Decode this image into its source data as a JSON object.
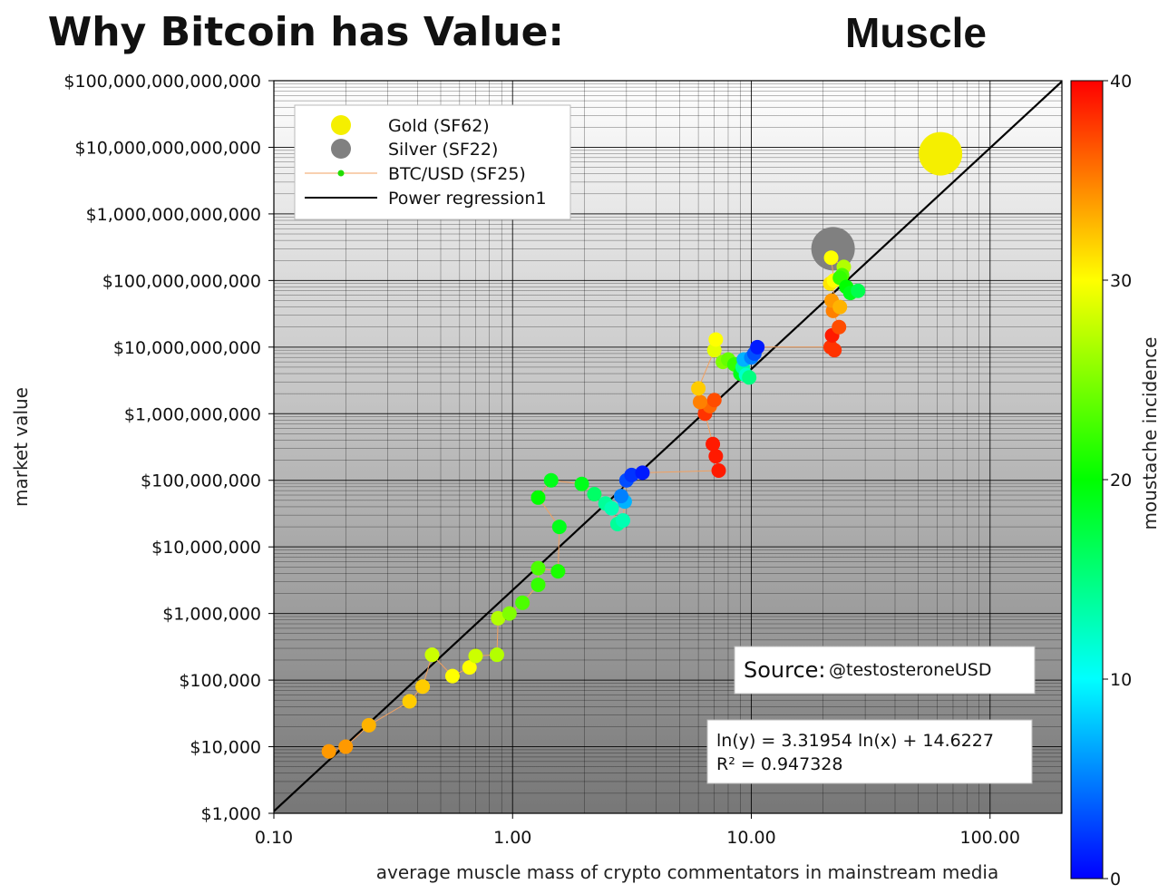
{
  "chart_data": {
    "type": "scatter",
    "title_main": "Why Bitcoin has Value:",
    "title_word": "Muscle",
    "xlabel": "average muscle mass of crypto commentators in mainstream media",
    "ylabel": "market value",
    "colorbar_label": "moustache incidence",
    "x_scale": "log",
    "y_scale": "log",
    "xlim": [
      0.1,
      200
    ],
    "ylim": [
      1000,
      100000000000000
    ],
    "x_ticks": [
      0.1,
      1,
      10,
      100
    ],
    "x_tick_labels": [
      "0.10",
      "1.00",
      "10.00",
      "100.00"
    ],
    "y_ticks": [
      1000,
      10000,
      100000,
      1000000,
      10000000,
      100000000,
      1000000000,
      10000000000,
      100000000000,
      1000000000000,
      10000000000000,
      100000000000000
    ],
    "y_tick_labels": [
      "$1,000",
      "$10,000",
      "$100,000",
      "$1,000,000",
      "$10,000,000",
      "$100,000,000",
      "$1,000,000,000",
      "$10,000,000,000",
      "$100,000,000,000",
      "$1,000,000,000,000",
      "$10,000,000,000,000",
      "$100,000,000,000,000"
    ],
    "colorbar_range": [
      0,
      40
    ],
    "colorbar_ticks": [
      "0",
      "10",
      "20",
      "30",
      "40"
    ],
    "grid": true,
    "legend_position": "top-left",
    "legend": [
      {
        "label": "Gold (SF62)",
        "kind": "marker",
        "color": "#f5ef00"
      },
      {
        "label": "Silver (SF22)",
        "kind": "marker",
        "color": "#808080"
      },
      {
        "label": "BTC/USD (SF25)",
        "kind": "line-marker",
        "color": "#22dd00",
        "line_color": "#f2a060"
      },
      {
        "label": "Power regression1",
        "kind": "line",
        "color": "#000000"
      }
    ],
    "regression": {
      "slope": 3.31954,
      "intercept": 14.6227,
      "equation": "ln(y) = 3.31954 ln(x) + 14.6227",
      "r2": "R² = 0.947328"
    },
    "source_label": "Source:",
    "source_handle": "@testosteroneUSD",
    "gold": {
      "x": 62,
      "y": 8000000000000,
      "size": "large"
    },
    "silver": {
      "x": 22,
      "y": 300000000000,
      "size": "medium"
    },
    "btc_points": [
      [
        0.17,
        8500,
        34
      ],
      [
        0.2,
        10000,
        34
      ],
      [
        0.25,
        21000,
        33
      ],
      [
        0.37,
        48000,
        32
      ],
      [
        0.42,
        80000,
        32
      ],
      [
        0.46,
        240000,
        28
      ],
      [
        0.56,
        115000,
        30
      ],
      [
        0.66,
        155000,
        30
      ],
      [
        0.7,
        230000,
        28
      ],
      [
        0.86,
        240000,
        27
      ],
      [
        0.87,
        850000,
        27
      ],
      [
        0.97,
        1000000,
        25
      ],
      [
        1.1,
        1450000,
        23
      ],
      [
        1.28,
        2700000,
        22
      ],
      [
        1.28,
        4800000,
        23
      ],
      [
        1.55,
        4300000,
        21
      ],
      [
        1.57,
        20000000,
        19
      ],
      [
        1.28,
        55000000,
        20
      ],
      [
        1.45,
        100000000,
        19
      ],
      [
        1.95,
        88000000,
        19
      ],
      [
        2.2,
        62000000,
        16
      ],
      [
        2.45,
        45000000,
        14
      ],
      [
        2.6,
        38000000,
        13
      ],
      [
        2.75,
        22000000,
        14
      ],
      [
        2.9,
        25000000,
        13
      ],
      [
        2.95,
        48000000,
        7
      ],
      [
        2.85,
        58000000,
        5
      ],
      [
        3.0,
        100000000,
        3
      ],
      [
        3.15,
        120000000,
        2
      ],
      [
        3.5,
        130000000,
        1
      ],
      [
        7.3,
        140000000,
        39
      ],
      [
        7.1,
        230000000,
        39
      ],
      [
        6.9,
        350000000,
        39
      ],
      [
        6.4,
        1000000000,
        38
      ],
      [
        6.7,
        1300000000,
        36
      ],
      [
        7.0,
        1600000000,
        37
      ],
      [
        6.1,
        1500000000,
        35
      ],
      [
        6.0,
        2400000000,
        32
      ],
      [
        7.0,
        9000000000,
        29
      ],
      [
        7.1,
        13000000000,
        30
      ],
      [
        7.6,
        6000000000,
        25
      ],
      [
        8.0,
        6500000000,
        24
      ],
      [
        8.5,
        5500000000,
        22
      ],
      [
        9.0,
        4000000000,
        19
      ],
      [
        9.2,
        5000000000,
        14
      ],
      [
        9.5,
        3800000000,
        12
      ],
      [
        9.8,
        3500000000,
        15
      ],
      [
        9.3,
        6500000000,
        7
      ],
      [
        10.0,
        7000000000,
        5
      ],
      [
        10.3,
        8000000000,
        3
      ],
      [
        10.6,
        10000000000,
        1
      ],
      [
        21.5,
        10000000000,
        38
      ],
      [
        22.3,
        9000000000,
        38
      ],
      [
        21.8,
        15000000000,
        39
      ],
      [
        23.3,
        20000000000,
        37
      ],
      [
        22.0,
        35000000000,
        35
      ],
      [
        21.7,
        50000000000,
        34
      ],
      [
        23.5,
        40000000000,
        33
      ],
      [
        21.4,
        90000000000,
        31
      ],
      [
        22.2,
        100000000000,
        30
      ],
      [
        21.6,
        220000000000,
        30
      ],
      [
        24.4,
        160000000000,
        27
      ],
      [
        24.0,
        120000000000,
        23
      ],
      [
        23.5,
        110000000000,
        22
      ],
      [
        25.0,
        80000000000,
        20
      ],
      [
        26.0,
        65000000000,
        19
      ],
      [
        28.0,
        70000000000,
        17
      ]
    ]
  }
}
